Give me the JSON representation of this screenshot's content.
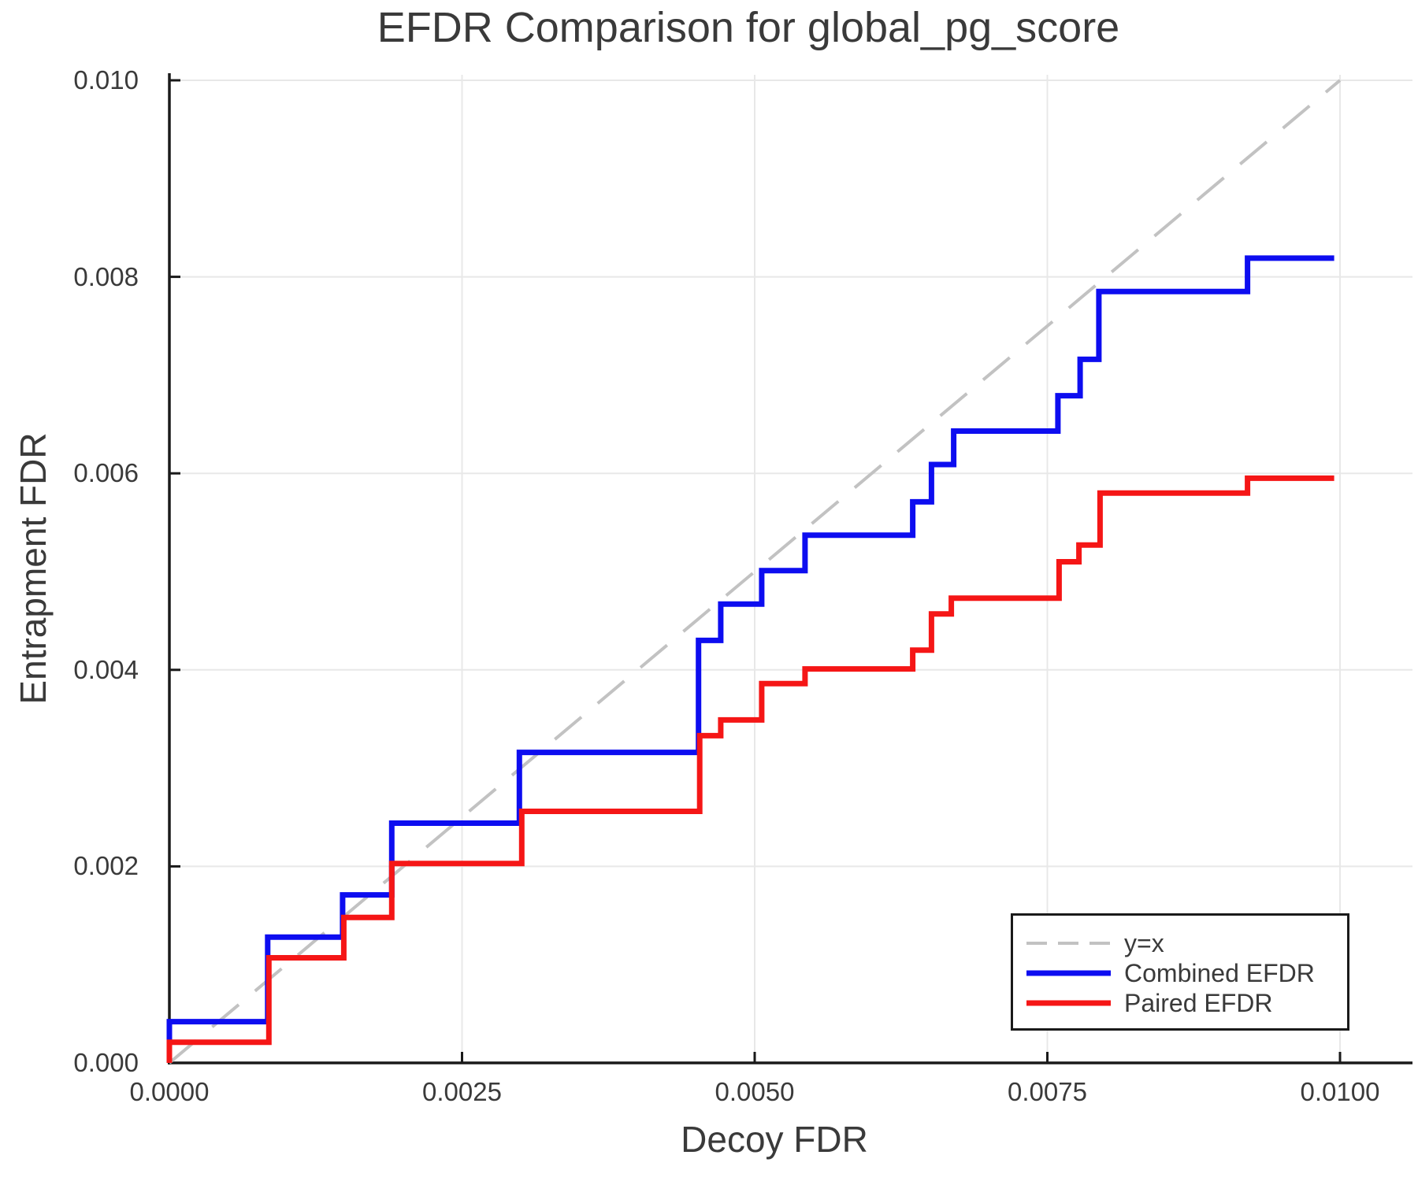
{
  "colors": {
    "background": "#ffffff",
    "grid": "#e8e8e8",
    "axis": "#1a1a1a",
    "text": "#3a3a3a",
    "legend_border": "#1a1a1a",
    "identity_line": "#c2c2c2",
    "combined": "#0d0df0",
    "paired": "#f51616"
  },
  "chart_data": {
    "type": "line",
    "title": "EFDR Comparison for global_pg_score",
    "xlabel": "Decoy FDR",
    "ylabel": "Entrapment FDR",
    "xlim": [
      0,
      0.01062
    ],
    "ylim": [
      0,
      0.01006
    ],
    "grid": true,
    "legend_position": "lower right",
    "x_ticks": {
      "values": [
        0,
        0.0025,
        0.005,
        0.0075,
        0.01
      ],
      "labels": [
        "0.0000",
        "0.0025",
        "0.0050",
        "0.0075",
        "0.0100"
      ]
    },
    "y_ticks": {
      "values": [
        0,
        0.002,
        0.004,
        0.006,
        0.008,
        0.01
      ],
      "labels": [
        "0.000",
        "0.002",
        "0.004",
        "0.006",
        "0.008",
        "0.010"
      ]
    },
    "series": [
      {
        "name": "y=x",
        "draw": "line",
        "style": "dashed",
        "color_key": "identity_line",
        "points": [
          [
            0,
            0
          ],
          [
            0.01,
            0.01
          ]
        ]
      },
      {
        "name": "Combined EFDR",
        "draw": "step",
        "style": "solid",
        "color_key": "combined",
        "points": [
          [
            0,
            0
          ],
          [
            0,
            0.00042
          ],
          [
            0.00084,
            0.00128
          ],
          [
            0.00148,
            0.00171
          ],
          [
            0.0019,
            0.00244
          ],
          [
            0.00299,
            0.00316
          ],
          [
            0.00452,
            0.0043
          ],
          [
            0.00471,
            0.00467
          ],
          [
            0.00506,
            0.00501
          ],
          [
            0.00543,
            0.00537
          ],
          [
            0.00635,
            0.00571
          ],
          [
            0.00651,
            0.00609
          ],
          [
            0.0067,
            0.00643
          ],
          [
            0.00759,
            0.00679
          ],
          [
            0.00778,
            0.00716
          ],
          [
            0.00794,
            0.00785
          ],
          [
            0.00921,
            0.00819
          ],
          [
            0.00995,
            0.00819
          ]
        ]
      },
      {
        "name": "Paired EFDR",
        "draw": "step",
        "style": "solid",
        "color_key": "paired",
        "points": [
          [
            0,
            0
          ],
          [
            0,
            0.00021
          ],
          [
            0.00085,
            0.00107
          ],
          [
            0.00149,
            0.00148
          ],
          [
            0.0019,
            0.00203
          ],
          [
            0.00301,
            0.00256
          ],
          [
            0.00453,
            0.00333
          ],
          [
            0.00471,
            0.00349
          ],
          [
            0.00506,
            0.00386
          ],
          [
            0.00543,
            0.00401
          ],
          [
            0.00635,
            0.0042
          ],
          [
            0.00651,
            0.00457
          ],
          [
            0.00668,
            0.00473
          ],
          [
            0.0076,
            0.0051
          ],
          [
            0.00777,
            0.00527
          ],
          [
            0.00795,
            0.0058
          ],
          [
            0.00921,
            0.00595
          ],
          [
            0.00995,
            0.00595
          ]
        ]
      }
    ]
  }
}
